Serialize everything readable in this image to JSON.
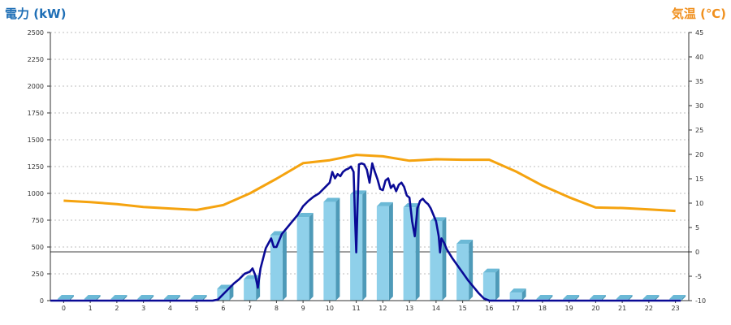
{
  "colors": {
    "power_axis": "#1f6fb6",
    "temp_axis": "#f0901e",
    "bar_front": "#8fd0ea",
    "bar_side": "#4e9ab8",
    "bar_top": "#6bb9d6",
    "power_line": "#0a0a96",
    "temp_line": "#f5a30f",
    "grid": "#bdbdbd"
  },
  "chart_data": {
    "type": "bar",
    "title": "",
    "ylabel": "電力 (kW)",
    "y2label": "気温 (℃)",
    "grid": true,
    "categories": [
      "0",
      "1",
      "2",
      "3",
      "4",
      "5",
      "6",
      "7",
      "8",
      "9",
      "10",
      "11",
      "12",
      "13",
      "14",
      "15",
      "16",
      "17",
      "18",
      "19",
      "20",
      "21",
      "22",
      "23"
    ],
    "ylim": [
      0,
      2500
    ],
    "y_ticks": [
      "0",
      "250",
      "500",
      "750",
      "1000",
      "1250",
      "1500",
      "1750",
      "2000",
      "2250",
      "2500"
    ],
    "y2lim": [
      -10,
      45
    ],
    "y2_ticks": [
      "-10",
      "-5",
      "0",
      "5",
      "10",
      "15",
      "20",
      "25",
      "30",
      "35",
      "40",
      "45"
    ],
    "series": [
      {
        "kind": "bar",
        "axis": "left",
        "values": [
          0,
          0,
          0,
          0,
          0,
          0,
          110,
          200,
          610,
          780,
          920,
          990,
          880,
          870,
          740,
          530,
          260,
          75,
          0,
          0,
          0,
          0,
          0,
          0
        ]
      },
      {
        "kind": "line",
        "axis": "left",
        "x": [
          5.0,
          5.3,
          5.6,
          5.8,
          6.0,
          6.2,
          6.4,
          6.6,
          6.8,
          7.0,
          7.1,
          7.2,
          7.3,
          7.4,
          7.6,
          7.8,
          7.9,
          8.0,
          8.2,
          8.4,
          8.6,
          8.8,
          9.0,
          9.2,
          9.4,
          9.6,
          9.8,
          10.0,
          10.1,
          10.2,
          10.3,
          10.4,
          10.5,
          10.6,
          10.7,
          10.8,
          10.9,
          10.95,
          11.0,
          11.05,
          11.1,
          11.2,
          11.3,
          11.4,
          11.5,
          11.6,
          11.7,
          11.8,
          11.9,
          12.0,
          12.1,
          12.2,
          12.3,
          12.4,
          12.5,
          12.6,
          12.7,
          12.8,
          12.9,
          13.0,
          13.1,
          13.2,
          13.3,
          13.4,
          13.5,
          13.6,
          13.7,
          13.8,
          13.9,
          14.0,
          14.1,
          14.15,
          14.2,
          14.3,
          14.4,
          14.5,
          14.6,
          14.8,
          15.0,
          15.2,
          15.4,
          15.6,
          15.8,
          16.0,
          16.2,
          16.4,
          16.6,
          16.8,
          17.0,
          17.2,
          17.4,
          17.6,
          18.0,
          18.5,
          19.0,
          20.0,
          21.0,
          22.0,
          23.0,
          23.2
        ],
        "values": [
          0,
          0,
          0,
          10,
          60,
          110,
          160,
          200,
          250,
          270,
          300,
          240,
          120,
          300,
          490,
          580,
          500,
          500,
          620,
          680,
          740,
          800,
          880,
          930,
          970,
          1000,
          1050,
          1100,
          1200,
          1140,
          1180,
          1160,
          1200,
          1220,
          1230,
          1250,
          1200,
          800,
          450,
          900,
          1270,
          1280,
          1270,
          1220,
          1100,
          1280,
          1200,
          1130,
          1040,
          1030,
          1120,
          1140,
          1050,
          1080,
          1020,
          1080,
          1100,
          1060,
          980,
          960,
          740,
          600,
          860,
          930,
          950,
          920,
          900,
          860,
          800,
          740,
          600,
          450,
          580,
          540,
          480,
          440,
          400,
          330,
          260,
          190,
          130,
          70,
          20,
          0,
          0,
          0,
          0,
          0,
          0,
          0,
          0,
          0,
          0,
          0,
          0,
          0,
          0,
          0,
          0,
          0
        ]
      },
      {
        "kind": "line",
        "axis": "right",
        "values": [
          10.5,
          10.2,
          9.8,
          9.2,
          8.9,
          8.6,
          9.6,
          12.0,
          15.0,
          18.2,
          18.8,
          19.9,
          19.6,
          18.7,
          19.0,
          18.9,
          18.9,
          16.5,
          13.6,
          11.2,
          9.1,
          9.0,
          8.7,
          8.4
        ]
      }
    ]
  }
}
